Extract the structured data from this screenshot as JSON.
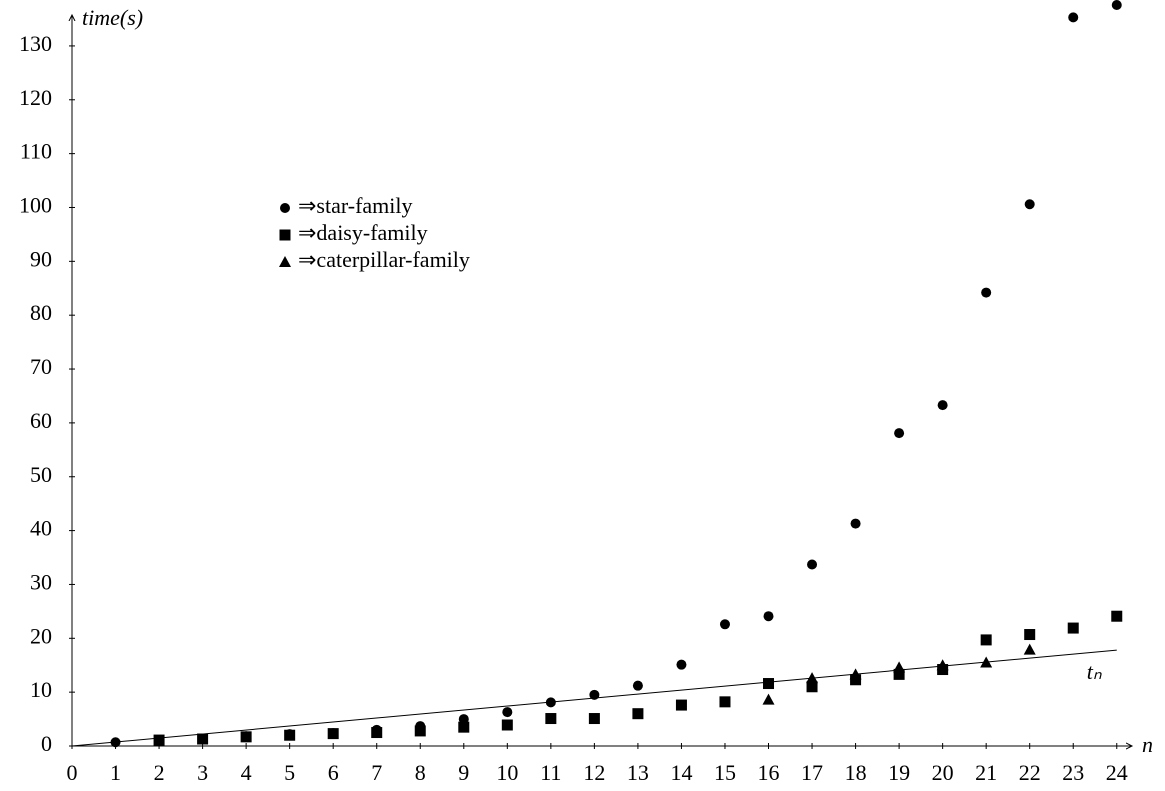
{
  "chart_data": {
    "type": "scatter",
    "x_label": "n",
    "y_label": "time(s)",
    "x": [
      1,
      2,
      3,
      4,
      5,
      6,
      7,
      8,
      9,
      10,
      11,
      12,
      13,
      14,
      15,
      16,
      17,
      18,
      19,
      20,
      21,
      22,
      23,
      24
    ],
    "series": [
      {
        "name": "⇒star-family",
        "color": "#000000",
        "marker": "circle",
        "values": [
          0.7,
          1.1,
          1.4,
          1.8,
          2.2,
          2.4,
          3.0,
          3.7,
          5.0,
          6.3,
          8.1,
          9.5,
          11.2,
          15.1,
          22.6,
          24.1,
          33.7,
          41.3,
          58.1,
          63.3,
          84.2,
          100.6,
          135.3,
          137.6
        ]
      },
      {
        "name": "⇒daisy-family",
        "color": "#000000",
        "marker": "square",
        "values": [
          null,
          1.1,
          1.3,
          1.7,
          2.0,
          2.3,
          2.5,
          2.8,
          3.5,
          3.9,
          5.1,
          5.1,
          6.0,
          7.6,
          8.2,
          11.6,
          11.0,
          12.3,
          13.3,
          14.2,
          19.7,
          20.7,
          21.9,
          24.1
        ]
      },
      {
        "name": "⇒caterpillar-family",
        "color": "#000000",
        "marker": "triangle",
        "values": [
          null,
          null,
          null,
          null,
          null,
          null,
          null,
          null,
          null,
          null,
          null,
          null,
          null,
          null,
          null,
          8.6,
          12.6,
          13.3,
          14.6,
          15.0,
          15.5,
          17.9,
          null,
          null
        ]
      }
    ],
    "line": {
      "name": "tₙ",
      "color": "#000000",
      "x": [
        0,
        24
      ],
      "values": [
        0,
        17.8
      ]
    },
    "xlim": [
      0,
      24.35
    ],
    "ylim": [
      0,
      135
    ],
    "xticks": [
      0,
      1,
      2,
      3,
      4,
      5,
      6,
      7,
      8,
      9,
      10,
      11,
      12,
      13,
      14,
      15,
      16,
      17,
      18,
      19,
      20,
      21,
      22,
      23,
      24
    ],
    "yticks": [
      0,
      10,
      20,
      30,
      40,
      50,
      60,
      70,
      80,
      90,
      100,
      110,
      120,
      130
    ]
  }
}
